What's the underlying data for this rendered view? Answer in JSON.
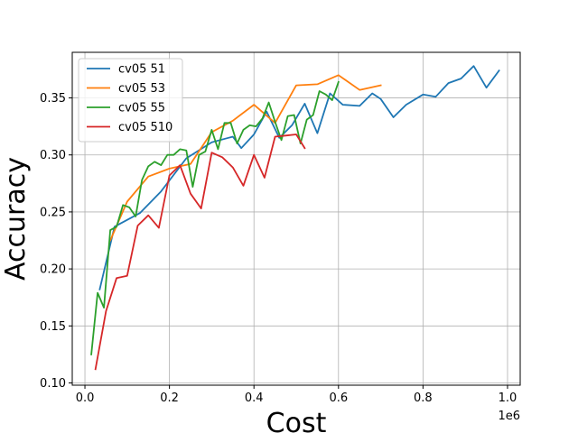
{
  "chart_data": {
    "type": "line",
    "title": "",
    "xlabel": "Cost",
    "ylabel": "Accuracy",
    "x_offset_label": "1e6",
    "xlim": [
      -0.03,
      1.03
    ],
    "ylim": [
      0.098,
      0.39
    ],
    "x_ticks": [
      0.0,
      0.2,
      0.4,
      0.6,
      0.8,
      1.0
    ],
    "x_tick_labels": [
      "0.0",
      "0.2",
      "0.4",
      "0.6",
      "0.8",
      "1.0"
    ],
    "y_ticks": [
      0.1,
      0.15,
      0.2,
      0.25,
      0.3,
      0.35
    ],
    "y_tick_labels": [
      "0.10",
      "0.15",
      "0.20",
      "0.25",
      "0.30",
      "0.35"
    ],
    "grid": true,
    "legend_position": "top-left",
    "series": [
      {
        "name": "cv05 51",
        "color": "#1f77b4",
        "x": [
          0.035,
          0.07,
          0.13,
          0.18,
          0.24,
          0.3,
          0.35,
          0.37,
          0.4,
          0.43,
          0.46,
          0.49,
          0.52,
          0.55,
          0.58,
          0.61,
          0.65,
          0.68,
          0.7,
          0.73,
          0.76,
          0.8,
          0.83,
          0.86,
          0.89,
          0.92,
          0.95,
          0.98
        ],
        "y": [
          0.182,
          0.237,
          0.249,
          0.268,
          0.297,
          0.311,
          0.316,
          0.306,
          0.318,
          0.338,
          0.315,
          0.326,
          0.345,
          0.319,
          0.354,
          0.344,
          0.343,
          0.354,
          0.349,
          0.333,
          0.344,
          0.353,
          0.351,
          0.363,
          0.367,
          0.378,
          0.359,
          0.374
        ]
      },
      {
        "name": "cv05 53",
        "color": "#ff7f0e",
        "x": [
          0.06,
          0.1,
          0.15,
          0.2,
          0.25,
          0.3,
          0.35,
          0.4,
          0.45,
          0.5,
          0.55,
          0.6,
          0.65,
          0.7
        ],
        "y": [
          0.225,
          0.259,
          0.281,
          0.288,
          0.292,
          0.32,
          0.33,
          0.344,
          0.328,
          0.361,
          0.362,
          0.37,
          0.357,
          0.361
        ]
      },
      {
        "name": "cv05 55",
        "color": "#2ca02c",
        "x": [
          0.015,
          0.03,
          0.045,
          0.06,
          0.075,
          0.09,
          0.105,
          0.12,
          0.135,
          0.15,
          0.165,
          0.18,
          0.195,
          0.21,
          0.225,
          0.24,
          0.255,
          0.27,
          0.285,
          0.3,
          0.315,
          0.33,
          0.345,
          0.36,
          0.375,
          0.39,
          0.405,
          0.42,
          0.435,
          0.45,
          0.465,
          0.48,
          0.495,
          0.51,
          0.525,
          0.54,
          0.555,
          0.57,
          0.585,
          0.6
        ],
        "y": [
          0.125,
          0.179,
          0.166,
          0.234,
          0.237,
          0.256,
          0.254,
          0.246,
          0.278,
          0.29,
          0.294,
          0.291,
          0.3,
          0.3,
          0.305,
          0.304,
          0.272,
          0.3,
          0.303,
          0.322,
          0.305,
          0.328,
          0.328,
          0.31,
          0.322,
          0.326,
          0.325,
          0.332,
          0.346,
          0.329,
          0.313,
          0.334,
          0.335,
          0.31,
          0.331,
          0.335,
          0.356,
          0.353,
          0.348,
          0.364
        ]
      },
      {
        "name": "cv05 510",
        "color": "#d62728",
        "x": [
          0.025,
          0.05,
          0.075,
          0.1,
          0.125,
          0.15,
          0.175,
          0.2,
          0.225,
          0.25,
          0.275,
          0.3,
          0.325,
          0.35,
          0.375,
          0.4,
          0.425,
          0.45,
          0.475,
          0.5,
          0.52
        ],
        "y": [
          0.112,
          0.163,
          0.192,
          0.194,
          0.238,
          0.247,
          0.236,
          0.282,
          0.291,
          0.266,
          0.253,
          0.302,
          0.298,
          0.289,
          0.273,
          0.3,
          0.28,
          0.316,
          0.317,
          0.318,
          0.306
        ]
      }
    ]
  }
}
